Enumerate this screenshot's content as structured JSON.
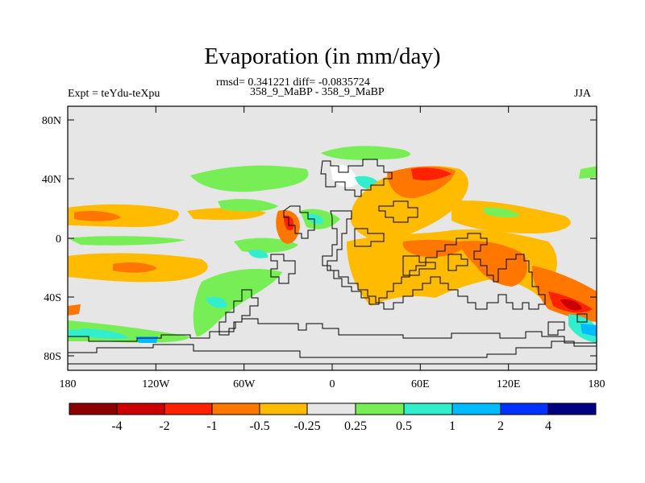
{
  "title": "Evaporation (in mm/day)",
  "stats_line": "rmsd= 0.341221 diff= -0.0835724",
  "experiment_label": "Expt = teYdu-teXpu",
  "comparison_label": "358_9_MaBP - 358_9_MaBP",
  "season_label": "JJA",
  "map": {
    "projection": "cylindrical equidistant",
    "background_color": "#e6e6e6",
    "lon_ticks": [
      "180",
      "120W",
      "60W",
      "0",
      "60E",
      "120E",
      "180"
    ],
    "lat_ticks": [
      "80N",
      "40N",
      "0",
      "40S",
      "80S"
    ]
  },
  "colorbar": {
    "labels": [
      "-4",
      "-2",
      "-1",
      "-0.5",
      "-0.25",
      "0.25",
      "0.5",
      "1",
      "2",
      "4"
    ],
    "colors": [
      "#8b0000",
      "#cc0000",
      "#ff2200",
      "#ff7700",
      "#ffbb00",
      "#e6e6e6",
      "#77ee55",
      "#33eecc",
      "#00bbff",
      "#0033ff",
      "#000080"
    ]
  }
}
